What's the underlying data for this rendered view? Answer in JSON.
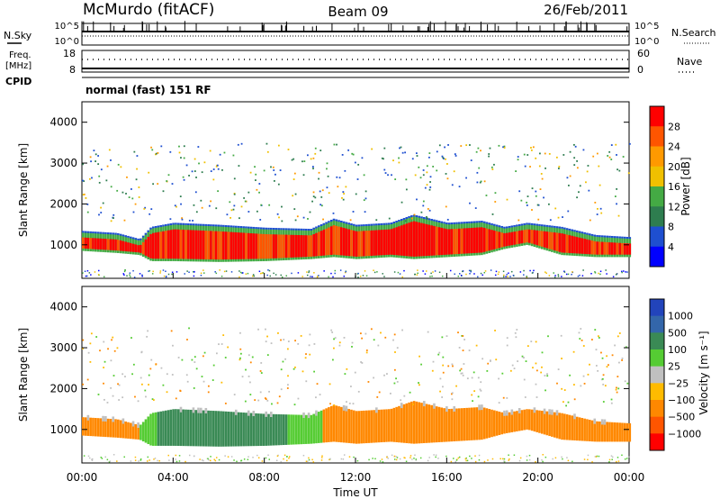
{
  "header": {
    "station": "McMurdo (fitACF)",
    "beam": "Beam 09",
    "date": "26/Feb/2011"
  },
  "strip": {
    "nsky_label": "N.Sky",
    "nsky_ticks": [
      "10^5",
      "10^0"
    ],
    "nsearch_label": "N.Search",
    "nsearch_ticks": [
      "10^5",
      "10^0"
    ],
    "freq_label_1": "Freq.",
    "freq_label_2": "[MHz]",
    "freq_ticks": [
      "18",
      "8"
    ],
    "nave_label": "Nave",
    "nave_ticks": [
      "60",
      "0"
    ],
    "cpid_label": "CPID",
    "cpid_text": "normal (fast) 151 RF"
  },
  "chart_data": [
    {
      "type": "heatmap",
      "name": "power",
      "ylabel": "Slant Range [km]",
      "ylim": [
        180,
        4500
      ],
      "yticks": [
        "1000",
        "2000",
        "3000",
        "4000"
      ],
      "xlim_hours": [
        0,
        24
      ],
      "colorbar": {
        "label": "Power [dB]",
        "range": [
          0,
          32
        ],
        "ticks": [
          "4",
          "8",
          "12",
          "16",
          "20",
          "24",
          "28"
        ],
        "colors": [
          "#0000ff",
          "#1e4fd0",
          "#2e7d4f",
          "#44aa44",
          "#f0c000",
          "#ff9900",
          "#ff5500",
          "#ff0000"
        ]
      },
      "main_band_km": [
        [
          0.0,
          850,
          1300
        ],
        [
          1.5,
          800,
          1250
        ],
        [
          2.5,
          750,
          1100
        ],
        [
          3.0,
          600,
          1400
        ],
        [
          4.0,
          600,
          1500
        ],
        [
          6.0,
          580,
          1450
        ],
        [
          8.0,
          600,
          1380
        ],
        [
          10.0,
          650,
          1350
        ],
        [
          11.0,
          700,
          1600
        ],
        [
          12.0,
          650,
          1450
        ],
        [
          13.5,
          700,
          1500
        ],
        [
          14.5,
          650,
          1700
        ],
        [
          16.0,
          700,
          1500
        ],
        [
          17.5,
          750,
          1550
        ],
        [
          18.5,
          900,
          1400
        ],
        [
          19.5,
          1000,
          1500
        ],
        [
          21.0,
          750,
          1400
        ],
        [
          22.5,
          700,
          1200
        ],
        [
          24.0,
          700,
          1150
        ]
      ]
    },
    {
      "type": "heatmap",
      "name": "velocity",
      "ylabel": "Slant Range [km]",
      "xlabel": "Time UT",
      "ylim": [
        180,
        4500
      ],
      "yticks": [
        "1000",
        "2000",
        "3000",
        "4000"
      ],
      "xticks": [
        "00:00",
        "04:00",
        "08:00",
        "12:00",
        "16:00",
        "20:00",
        "00:00"
      ],
      "xlim_hours": [
        0,
        24
      ],
      "colorbar": {
        "label": "Velocity [m s⁻¹]",
        "ticks": [
          "1000",
          "500",
          "100",
          "25",
          "−25",
          "−100",
          "−500",
          "−1000"
        ],
        "colors": [
          "#2244bb",
          "#3366aa",
          "#3a8a55",
          "#55cc33",
          "#c0c0c0",
          "#ffbb00",
          "#ff8800",
          "#ff5500",
          "#ff0000"
        ]
      },
      "segments_hours": [
        [
          0.0,
          2.5,
          "#ff8800"
        ],
        [
          2.5,
          3.2,
          "#55cc33"
        ],
        [
          3.2,
          9.0,
          "#3a8a55"
        ],
        [
          9.0,
          10.5,
          "#55cc33"
        ],
        [
          10.5,
          24.0,
          "#ff8800"
        ]
      ]
    }
  ]
}
